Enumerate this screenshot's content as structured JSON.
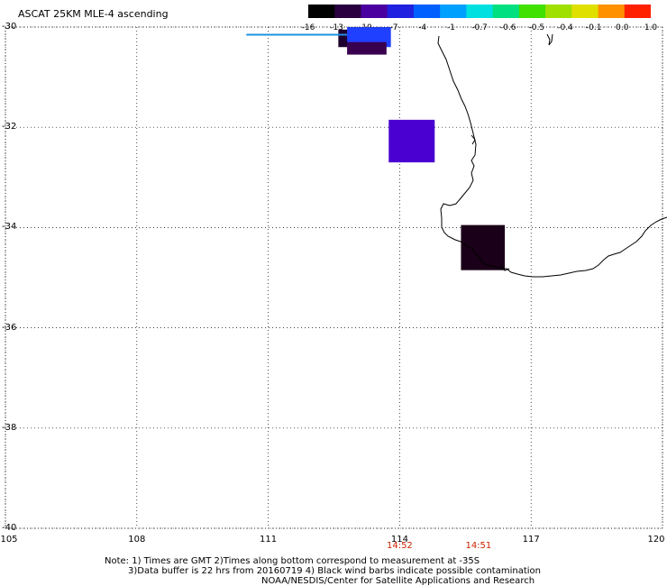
{
  "title": "ASCAT 25KM MLE-4 ascending",
  "colorbar": {
    "labels": [
      "-16",
      "-13",
      "-10",
      "-7",
      "-4",
      "-1",
      "-0.7",
      "-0.6",
      "-0.5",
      "-0.4",
      "-0.1",
      "0.0",
      "1.0"
    ],
    "colors": [
      "#000000",
      "#2a0040",
      "#4a00a0",
      "#2020e0",
      "#0060ff",
      "#00a0ff",
      "#00e0e0",
      "#00e080",
      "#40e000",
      "#a0e000",
      "#e0e000",
      "#ff9000",
      "#ff2000"
    ]
  },
  "map": {
    "lat_labels": [
      "-30",
      "-32",
      "-34",
      "-36",
      "-38",
      "-40"
    ],
    "lon_labels": [
      "105",
      "108",
      "111",
      "114",
      "117",
      "120"
    ],
    "lat_range": [
      -40,
      -30
    ],
    "lon_range": [
      105,
      120
    ],
    "time_labels": [
      {
        "text": "14:52",
        "lon": 114.0
      },
      {
        "text": "14:51",
        "lon": 115.8
      }
    ],
    "swath_cells": [
      {
        "lon": [
          112.6,
          113.6
        ],
        "lat": [
          -30.05,
          -30.4
        ],
        "color": "#1e0030",
        "value_bin": "-16"
      },
      {
        "lon": [
          112.8,
          113.8
        ],
        "lat": [
          -30.0,
          -30.4
        ],
        "color": "#2040ff",
        "value_bin": "-7"
      },
      {
        "lon": [
          112.8,
          113.7
        ],
        "lat": [
          -30.3,
          -30.55
        ],
        "color": "#3a0050",
        "value_bin": "-13"
      },
      {
        "lon": [
          113.75,
          114.8
        ],
        "lat": [
          -31.85,
          -32.7
        ],
        "color": "#4a00d0",
        "value_bin": "-10"
      },
      {
        "lon": [
          115.4,
          116.4
        ],
        "lat": [
          -33.95,
          -34.85
        ],
        "color": "#1a0018",
        "value_bin": "-16"
      }
    ],
    "wind_barb": {
      "lon": [
        110.5,
        112.8
      ],
      "lat": -30.08,
      "color": "#1e90e0"
    }
  },
  "notes": [
    "Note: 1) Times are GMT 2)Times along bottom correspond to measurement at -35S",
    "3)Data buffer is 22 hrs from 20160719 4) Black wind barbs indicate possible contamination",
    "NOAA/NESDIS/Center for Satellite Applications and Research"
  ]
}
